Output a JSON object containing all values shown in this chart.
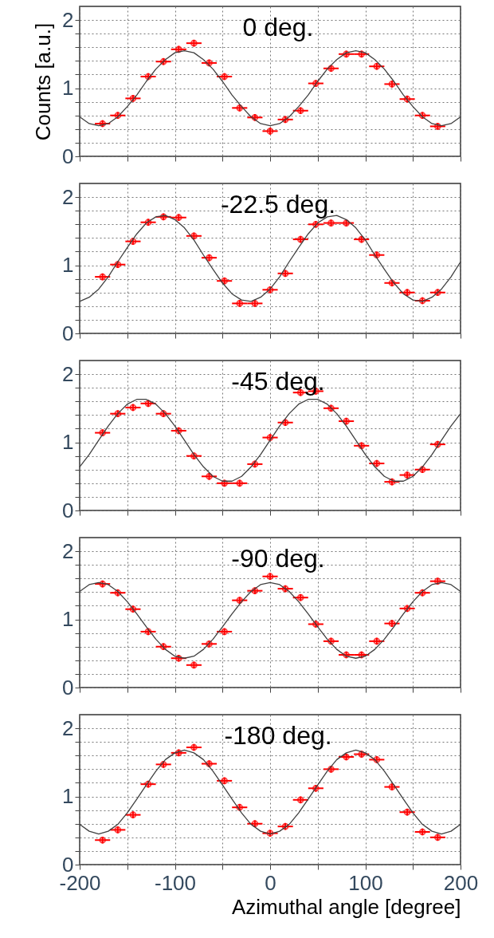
{
  "chart_data": [
    {
      "type": "scatter",
      "title": "0 deg.",
      "ylabel": "Counts [a.u.]",
      "xlim": [
        -200,
        200
      ],
      "ylim": [
        0,
        2.2
      ],
      "tick_labels": "y",
      "grid": true,
      "xticks": [
        -200,
        {
          "value": -150,
          "label": null
        },
        -100,
        {
          "value": -50,
          "label": null
        },
        0,
        {
          "value": 50,
          "label": null
        },
        100,
        {
          "value": 150,
          "label": null
        },
        200
      ],
      "yticks": [
        0,
        {
          "value": 0.2,
          "label": null
        },
        {
          "value": 0.4,
          "label": null
        },
        {
          "value": 0.6,
          "label": null
        },
        {
          "value": 0.8,
          "label": null
        },
        1,
        {
          "value": 1.2,
          "label": null
        },
        {
          "value": 1.4,
          "label": null
        },
        {
          "value": 1.6,
          "label": null
        },
        {
          "value": 1.8,
          "label": null
        },
        2
      ],
      "series": [
        {
          "type": "scatter",
          "color": "#ff0000",
          "marker": "circle",
          "x": [
            -176,
            -160,
            -144,
            -128,
            -112,
            -96,
            -80,
            -64,
            -48,
            -32,
            -16,
            0,
            16,
            32,
            48,
            64,
            80,
            96,
            112,
            128,
            144,
            160,
            176
          ],
          "values": [
            0.48,
            0.6,
            0.85,
            1.17,
            1.39,
            1.57,
            1.66,
            1.37,
            1.17,
            0.71,
            0.57,
            0.37,
            0.54,
            0.67,
            1.07,
            1.29,
            1.5,
            1.5,
            1.32,
            1.06,
            0.84,
            0.6,
            0.44
          ],
          "errors": [
            0.05,
            0.05,
            0.05,
            0.05,
            0.05,
            0.05,
            0.05,
            0.05,
            0.05,
            0.05,
            0.05,
            0.05,
            0.05,
            0.05,
            0.05,
            0.05,
            0.05,
            0.05,
            0.05,
            0.05,
            0.05,
            0.05,
            0.05
          ],
          "xerrors": [
            8,
            8,
            8,
            8,
            8,
            8,
            8,
            8,
            8,
            8,
            8,
            8,
            8,
            8,
            8,
            8,
            8,
            8,
            8,
            8,
            8,
            8,
            8
          ]
        },
        {
          "type": "line",
          "color": "#404040",
          "x": [
            -200,
            -190,
            -180,
            -170,
            -160,
            -150,
            -140,
            -130,
            -120,
            -110,
            -100,
            -90,
            -80,
            -70,
            -60,
            -50,
            -40,
            -30,
            -20,
            -10,
            0,
            10,
            20,
            30,
            40,
            50,
            60,
            70,
            80,
            90,
            100,
            110,
            120,
            130,
            140,
            150,
            160,
            170,
            180,
            190,
            200
          ],
          "values": [
            0.58,
            0.48,
            0.45,
            0.48,
            0.58,
            0.73,
            0.9,
            1.1,
            1.28,
            1.42,
            1.52,
            1.55,
            1.52,
            1.42,
            1.28,
            1.1,
            0.9,
            0.73,
            0.58,
            0.48,
            0.45,
            0.48,
            0.58,
            0.73,
            0.9,
            1.1,
            1.28,
            1.42,
            1.52,
            1.55,
            1.52,
            1.42,
            1.28,
            1.1,
            0.9,
            0.73,
            0.58,
            0.48,
            0.45,
            0.48,
            0.58
          ]
        }
      ]
    },
    {
      "type": "scatter",
      "title": "-22.5 deg.",
      "xlim": [
        -200,
        200
      ],
      "ylim": [
        0,
        2.2
      ],
      "tick_labels": "y",
      "grid": true,
      "xticks": [
        -200,
        {
          "value": -150,
          "label": null
        },
        -100,
        {
          "value": -50,
          "label": null
        },
        0,
        {
          "value": 50,
          "label": null
        },
        100,
        {
          "value": 150,
          "label": null
        },
        200
      ],
      "yticks": [
        0,
        {
          "value": 0.2,
          "label": null
        },
        {
          "value": 0.4,
          "label": null
        },
        {
          "value": 0.6,
          "label": null
        },
        {
          "value": 0.8,
          "label": null
        },
        1,
        {
          "value": 1.2,
          "label": null
        },
        {
          "value": 1.4,
          "label": null
        },
        {
          "value": 1.6,
          "label": null
        },
        {
          "value": 1.8,
          "label": null
        },
        2
      ],
      "series": [
        {
          "type": "scatter",
          "color": "#ff0000",
          "marker": "circle",
          "x": [
            -176,
            -160,
            -144,
            -128,
            -112,
            -96,
            -80,
            -64,
            -48,
            -32,
            -16,
            0,
            16,
            32,
            48,
            64,
            80,
            96,
            112,
            128,
            144,
            160,
            176
          ],
          "values": [
            0.83,
            1.01,
            1.35,
            1.63,
            1.71,
            1.7,
            1.43,
            1.11,
            0.77,
            0.44,
            0.44,
            0.64,
            0.88,
            1.38,
            1.6,
            1.62,
            1.62,
            1.38,
            1.15,
            0.74,
            0.6,
            0.48,
            0.6
          ],
          "errors": [
            0.05,
            0.05,
            0.05,
            0.05,
            0.05,
            0.05,
            0.05,
            0.05,
            0.05,
            0.05,
            0.05,
            0.05,
            0.05,
            0.05,
            0.05,
            0.05,
            0.05,
            0.05,
            0.05,
            0.05,
            0.05,
            0.05,
            0.05
          ],
          "xerrors": [
            8,
            8,
            8,
            8,
            8,
            8,
            8,
            8,
            8,
            8,
            8,
            8,
            8,
            8,
            8,
            8,
            8,
            8,
            8,
            8,
            8,
            8,
            8
          ]
        },
        {
          "type": "line",
          "color": "#404040",
          "x": [
            -200,
            -190,
            -180,
            -170,
            -160,
            -150,
            -140,
            -130,
            -120,
            -110,
            -100,
            -90,
            -80,
            -70,
            -60,
            -50,
            -40,
            -30,
            -20,
            -10,
            0,
            10,
            20,
            30,
            40,
            50,
            60,
            70,
            80,
            90,
            100,
            110,
            120,
            130,
            140,
            150,
            160,
            170,
            180,
            190,
            200
          ],
          "values": [
            0.47,
            0.53,
            0.65,
            0.83,
            1.05,
            1.26,
            1.46,
            1.62,
            1.71,
            1.73,
            1.67,
            1.55,
            1.37,
            1.15,
            0.94,
            0.74,
            0.58,
            0.49,
            0.47,
            0.53,
            0.65,
            0.83,
            1.05,
            1.26,
            1.46,
            1.62,
            1.71,
            1.73,
            1.67,
            1.55,
            1.37,
            1.15,
            0.94,
            0.74,
            0.58,
            0.49,
            0.47,
            0.53,
            0.65,
            0.83,
            1.05
          ]
        }
      ]
    },
    {
      "type": "scatter",
      "title": "-45 deg.",
      "xlim": [
        -200,
        200
      ],
      "ylim": [
        0,
        2.2
      ],
      "tick_labels": "y",
      "grid": true,
      "xticks": [
        -200,
        {
          "value": -150,
          "label": null
        },
        -100,
        {
          "value": -50,
          "label": null
        },
        0,
        {
          "value": 50,
          "label": null
        },
        100,
        {
          "value": 150,
          "label": null
        },
        200
      ],
      "yticks": [
        0,
        {
          "value": 0.2,
          "label": null
        },
        {
          "value": 0.4,
          "label": null
        },
        {
          "value": 0.6,
          "label": null
        },
        {
          "value": 0.8,
          "label": null
        },
        1,
        {
          "value": 1.2,
          "label": null
        },
        {
          "value": 1.4,
          "label": null
        },
        {
          "value": 1.6,
          "label": null
        },
        {
          "value": 1.8,
          "label": null
        },
        2
      ],
      "series": [
        {
          "type": "scatter",
          "color": "#ff0000",
          "marker": "circle",
          "x": [
            -176,
            -160,
            -144,
            -128,
            -112,
            -96,
            -80,
            -64,
            -48,
            -32,
            -16,
            0,
            16,
            32,
            48,
            64,
            80,
            96,
            112,
            128,
            144,
            160,
            176
          ],
          "values": [
            1.14,
            1.42,
            1.51,
            1.57,
            1.42,
            1.17,
            0.8,
            0.5,
            0.4,
            0.4,
            0.68,
            1.07,
            1.29,
            1.73,
            1.75,
            1.5,
            1.31,
            0.95,
            0.69,
            0.42,
            0.52,
            0.6,
            0.97
          ],
          "errors": [
            0.05,
            0.05,
            0.05,
            0.05,
            0.05,
            0.05,
            0.05,
            0.05,
            0.05,
            0.05,
            0.05,
            0.05,
            0.05,
            0.05,
            0.05,
            0.05,
            0.05,
            0.05,
            0.05,
            0.05,
            0.05,
            0.05,
            0.05
          ],
          "xerrors": [
            8,
            8,
            8,
            8,
            8,
            8,
            8,
            8,
            8,
            8,
            8,
            8,
            8,
            8,
            8,
            8,
            8,
            8,
            8,
            8,
            8,
            8,
            8
          ]
        },
        {
          "type": "line",
          "color": "#404040",
          "x": [
            -200,
            -190,
            -180,
            -170,
            -160,
            -150,
            -140,
            -130,
            -120,
            -110,
            -100,
            -90,
            -80,
            -70,
            -60,
            -50,
            -40,
            -30,
            -20,
            -10,
            0,
            10,
            20,
            30,
            40,
            50,
            60,
            70,
            80,
            90,
            100,
            110,
            120,
            130,
            140,
            150,
            160,
            170,
            180,
            190,
            200
          ],
          "values": [
            0.64,
            0.82,
            1.03,
            1.24,
            1.42,
            1.56,
            1.63,
            1.63,
            1.56,
            1.42,
            1.24,
            1.03,
            0.82,
            0.64,
            0.5,
            0.43,
            0.43,
            0.5,
            0.64,
            0.82,
            1.03,
            1.24,
            1.42,
            1.56,
            1.63,
            1.63,
            1.56,
            1.42,
            1.24,
            1.03,
            0.82,
            0.64,
            0.5,
            0.43,
            0.43,
            0.5,
            0.64,
            0.82,
            1.03,
            1.24,
            1.42
          ]
        }
      ]
    },
    {
      "type": "scatter",
      "title": "-90 deg.",
      "xlim": [
        -200,
        200
      ],
      "ylim": [
        0,
        2.2
      ],
      "tick_labels": "y",
      "grid": true,
      "xticks": [
        -200,
        {
          "value": -150,
          "label": null
        },
        -100,
        {
          "value": -50,
          "label": null
        },
        0,
        {
          "value": 50,
          "label": null
        },
        100,
        {
          "value": 150,
          "label": null
        },
        200
      ],
      "yticks": [
        0,
        {
          "value": 0.2,
          "label": null
        },
        {
          "value": 0.4,
          "label": null
        },
        {
          "value": 0.6,
          "label": null
        },
        {
          "value": 0.8,
          "label": null
        },
        1,
        {
          "value": 1.2,
          "label": null
        },
        {
          "value": 1.4,
          "label": null
        },
        {
          "value": 1.6,
          "label": null
        },
        {
          "value": 1.8,
          "label": null
        },
        2
      ],
      "series": [
        {
          "type": "scatter",
          "color": "#ff0000",
          "marker": "circle",
          "x": [
            -176,
            -160,
            -144,
            -128,
            -112,
            -96,
            -80,
            -64,
            -48,
            -32,
            -16,
            0,
            16,
            32,
            48,
            64,
            80,
            96,
            112,
            128,
            144,
            160,
            176
          ],
          "values": [
            1.52,
            1.39,
            1.15,
            0.82,
            0.6,
            0.43,
            0.33,
            0.64,
            0.82,
            1.28,
            1.42,
            1.63,
            1.45,
            1.32,
            0.93,
            0.68,
            0.48,
            0.48,
            0.68,
            0.94,
            1.16,
            1.39,
            1.56
          ],
          "errors": [
            0.05,
            0.05,
            0.05,
            0.05,
            0.05,
            0.05,
            0.05,
            0.05,
            0.05,
            0.05,
            0.05,
            0.05,
            0.05,
            0.05,
            0.05,
            0.05,
            0.05,
            0.05,
            0.05,
            0.05,
            0.05,
            0.05,
            0.05
          ],
          "xerrors": [
            8,
            8,
            8,
            8,
            8,
            8,
            8,
            8,
            8,
            8,
            8,
            8,
            8,
            8,
            8,
            8,
            8,
            8,
            8,
            8,
            8,
            8,
            8
          ]
        },
        {
          "type": "line",
          "color": "#404040",
          "x": [
            -200,
            -190,
            -180,
            -170,
            -160,
            -150,
            -140,
            -130,
            -120,
            -110,
            -100,
            -90,
            -80,
            -70,
            -60,
            -50,
            -40,
            -30,
            -20,
            -10,
            0,
            10,
            20,
            30,
            40,
            50,
            60,
            70,
            80,
            90,
            100,
            110,
            120,
            130,
            140,
            150,
            160,
            170,
            180,
            190,
            200
          ],
          "values": [
            1.41,
            1.51,
            1.54,
            1.51,
            1.41,
            1.26,
            1.08,
            0.89,
            0.71,
            0.56,
            0.46,
            0.43,
            0.46,
            0.56,
            0.71,
            0.89,
            1.08,
            1.26,
            1.41,
            1.51,
            1.54,
            1.51,
            1.41,
            1.26,
            1.08,
            0.89,
            0.71,
            0.56,
            0.46,
            0.43,
            0.46,
            0.56,
            0.71,
            0.89,
            1.08,
            1.26,
            1.41,
            1.51,
            1.54,
            1.51,
            1.41
          ]
        }
      ]
    },
    {
      "type": "scatter",
      "title": "-180 deg.",
      "xlabel": "Azimuthal angle [degree]",
      "xlim": [
        -200,
        200
      ],
      "ylim": [
        0,
        2.2
      ],
      "grid": true,
      "xticks": [
        -200,
        {
          "value": -150,
          "label": null
        },
        -100,
        {
          "value": -50,
          "label": null
        },
        0,
        {
          "value": 50,
          "label": null
        },
        100,
        {
          "value": 150,
          "label": null
        },
        200
      ],
      "yticks": [
        0,
        {
          "value": 0.2,
          "label": null
        },
        {
          "value": 0.4,
          "label": null
        },
        {
          "value": 0.6,
          "label": null
        },
        {
          "value": 0.8,
          "label": null
        },
        1,
        {
          "value": 1.2,
          "label": null
        },
        {
          "value": 1.4,
          "label": null
        },
        {
          "value": 1.6,
          "label": null
        },
        {
          "value": 1.8,
          "label": null
        },
        2
      ],
      "series": [
        {
          "type": "scatter",
          "color": "#ff0000",
          "marker": "circle",
          "x": [
            -176,
            -160,
            -144,
            -128,
            -112,
            -96,
            -80,
            -64,
            -48,
            -32,
            -16,
            0,
            16,
            32,
            48,
            64,
            80,
            96,
            112,
            128,
            144,
            160,
            176
          ],
          "values": [
            0.36,
            0.51,
            0.73,
            1.18,
            1.47,
            1.64,
            1.72,
            1.48,
            1.23,
            0.84,
            0.6,
            0.46,
            0.56,
            0.95,
            1.12,
            1.4,
            1.58,
            1.62,
            1.54,
            1.14,
            0.77,
            0.48,
            0.4
          ],
          "errors": [
            0.05,
            0.05,
            0.05,
            0.05,
            0.05,
            0.05,
            0.05,
            0.05,
            0.05,
            0.05,
            0.05,
            0.05,
            0.05,
            0.05,
            0.05,
            0.05,
            0.05,
            0.05,
            0.05,
            0.05,
            0.05,
            0.05,
            0.05
          ],
          "xerrors": [
            8,
            8,
            8,
            8,
            8,
            8,
            8,
            8,
            8,
            8,
            8,
            8,
            8,
            8,
            8,
            8,
            8,
            8,
            8,
            8,
            8,
            8,
            8
          ]
        },
        {
          "type": "line",
          "color": "#404040",
          "x": [
            -200,
            -190,
            -180,
            -170,
            -160,
            -150,
            -140,
            -130,
            -120,
            -110,
            -100,
            -90,
            -80,
            -70,
            -60,
            -50,
            -40,
            -30,
            -20,
            -10,
            0,
            10,
            20,
            30,
            40,
            50,
            60,
            70,
            80,
            90,
            100,
            110,
            120,
            130,
            140,
            150,
            160,
            170,
            180,
            190,
            200
          ],
          "values": [
            0.59,
            0.49,
            0.45,
            0.49,
            0.59,
            0.76,
            0.96,
            1.17,
            1.37,
            1.54,
            1.64,
            1.68,
            1.64,
            1.54,
            1.37,
            1.17,
            0.96,
            0.76,
            0.59,
            0.49,
            0.45,
            0.49,
            0.59,
            0.76,
            0.96,
            1.17,
            1.37,
            1.54,
            1.64,
            1.68,
            1.64,
            1.54,
            1.37,
            1.17,
            0.96,
            0.76,
            0.59,
            0.49,
            0.45,
            0.49,
            0.59
          ]
        }
      ]
    }
  ]
}
